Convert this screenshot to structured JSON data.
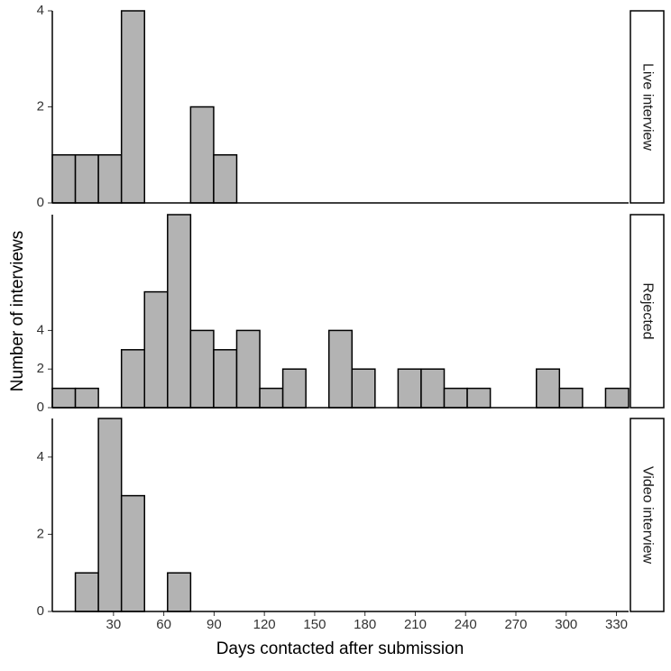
{
  "figure": {
    "xlabel": "Days contacted after submission",
    "ylabel": "Number of interviews"
  },
  "chart_data": [
    {
      "type": "histogram",
      "facet": "Live interview",
      "bins": [
        -6.5,
        7.25,
        21,
        34.75,
        48.5,
        62.25,
        76,
        89.75,
        103.5,
        117.25,
        131,
        144.75,
        158.5,
        172.25,
        186,
        199.75,
        213.5,
        227.25,
        241,
        254.75,
        268.5,
        282.25,
        296,
        309.75,
        323.5,
        337.25
      ],
      "values": [
        1,
        1,
        1,
        4,
        0,
        0,
        2,
        1,
        0,
        0,
        0,
        0,
        0,
        0,
        0,
        0,
        0,
        0,
        0,
        0,
        0,
        0,
        0,
        0,
        0
      ],
      "color": "#b3b3b3",
      "xlim": [
        -6.5,
        337.25
      ],
      "ylim": [
        0,
        4
      ],
      "yticks": [
        0,
        2,
        4
      ]
    },
    {
      "type": "histogram",
      "facet": "Rejected",
      "bins": [
        -6.5,
        7.25,
        21,
        34.75,
        48.5,
        62.25,
        76,
        89.75,
        103.5,
        117.25,
        131,
        144.75,
        158.5,
        172.25,
        186,
        199.75,
        213.5,
        227.25,
        241,
        254.75,
        268.5,
        282.25,
        296,
        309.75,
        323.5,
        337.25
      ],
      "values": [
        1,
        1,
        0,
        3,
        6,
        10,
        4,
        3,
        4,
        1,
        2,
        0,
        4,
        2,
        0,
        2,
        2,
        1,
        1,
        0,
        0,
        2,
        1,
        0,
        1
      ],
      "color": "#b3b3b3",
      "xlim": [
        -6.5,
        337.25
      ],
      "ylim": [
        0,
        10
      ],
      "yticks": [
        0,
        2,
        4
      ]
    },
    {
      "type": "histogram",
      "facet": "Video interview",
      "bins": [
        -6.5,
        7.25,
        21,
        34.75,
        48.5,
        62.25,
        76,
        89.75,
        103.5,
        117.25,
        131,
        144.75,
        158.5,
        172.25,
        186,
        199.75,
        213.5,
        227.25,
        241,
        254.75,
        268.5,
        282.25,
        296,
        309.75,
        323.5,
        337.25
      ],
      "values": [
        0,
        1,
        5,
        3,
        0,
        1,
        0,
        0,
        0,
        0,
        0,
        0,
        0,
        0,
        0,
        0,
        0,
        0,
        0,
        0,
        0,
        0,
        0,
        0,
        0
      ],
      "color": "#b3b3b3",
      "xlim": [
        -6.5,
        337.25
      ],
      "ylim": [
        0,
        5
      ],
      "yticks": [
        0,
        2,
        4
      ],
      "xticks": [
        30,
        60,
        90,
        120,
        150,
        180,
        210,
        240,
        270,
        300,
        330
      ]
    }
  ]
}
